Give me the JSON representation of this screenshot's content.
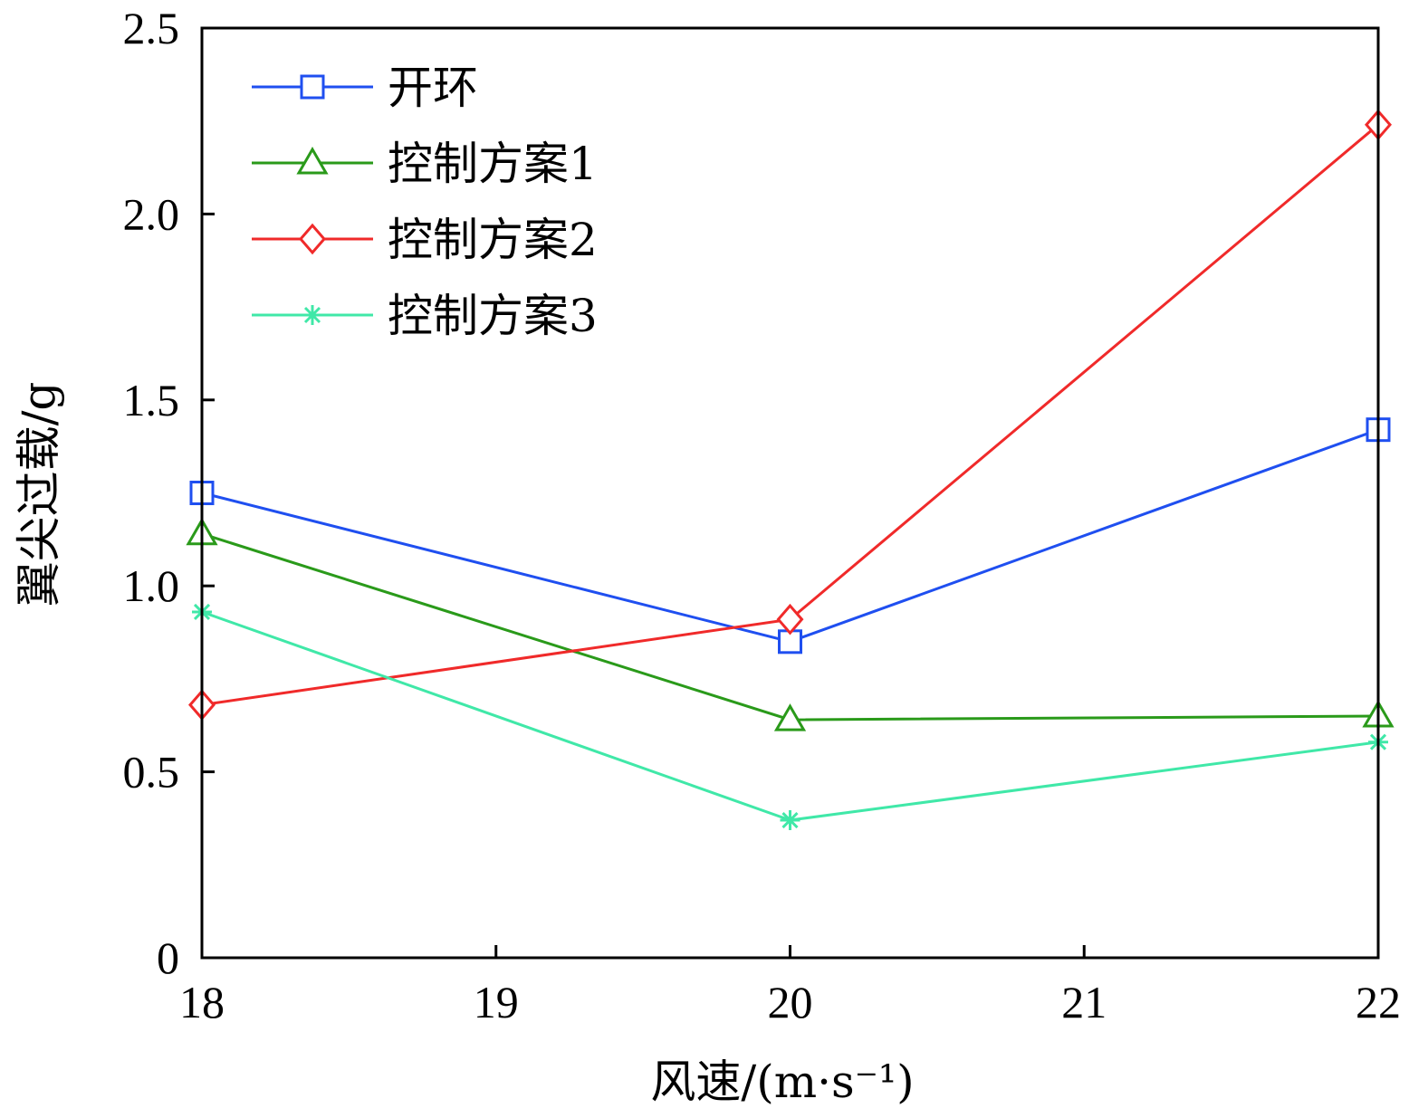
{
  "chart_data": {
    "type": "line",
    "title": "",
    "xlabel": "风速/(m·s⁻¹)",
    "ylabel": "翼尖过载/g",
    "x": [
      18,
      20,
      22
    ],
    "xlim": [
      18,
      22
    ],
    "ylim": [
      0,
      2.5
    ],
    "xticks": [
      18,
      19,
      20,
      21,
      22
    ],
    "yticks": [
      0,
      0.5,
      1.0,
      1.5,
      2.0,
      2.5
    ],
    "xtick_labels": [
      "18",
      "19",
      "20",
      "21",
      "22"
    ],
    "ytick_labels": [
      "0",
      "0.5",
      "1.0",
      "1.5",
      "2.0",
      "2.5"
    ],
    "grid": false,
    "legend_position": "top-left",
    "series": [
      {
        "name": "开环",
        "values": [
          1.25,
          0.85,
          1.42
        ],
        "color": "#1f4ff0",
        "marker": "square"
      },
      {
        "name": "控制方案1",
        "values": [
          1.14,
          0.64,
          0.65
        ],
        "color": "#2a9a1a",
        "marker": "triangle"
      },
      {
        "name": "控制方案2",
        "values": [
          0.68,
          0.91,
          2.24
        ],
        "color": "#f02a2a",
        "marker": "diamond"
      },
      {
        "name": "控制方案3",
        "values": [
          0.93,
          0.37,
          0.58
        ],
        "color": "#40e8a8",
        "marker": "asterisk"
      }
    ]
  }
}
